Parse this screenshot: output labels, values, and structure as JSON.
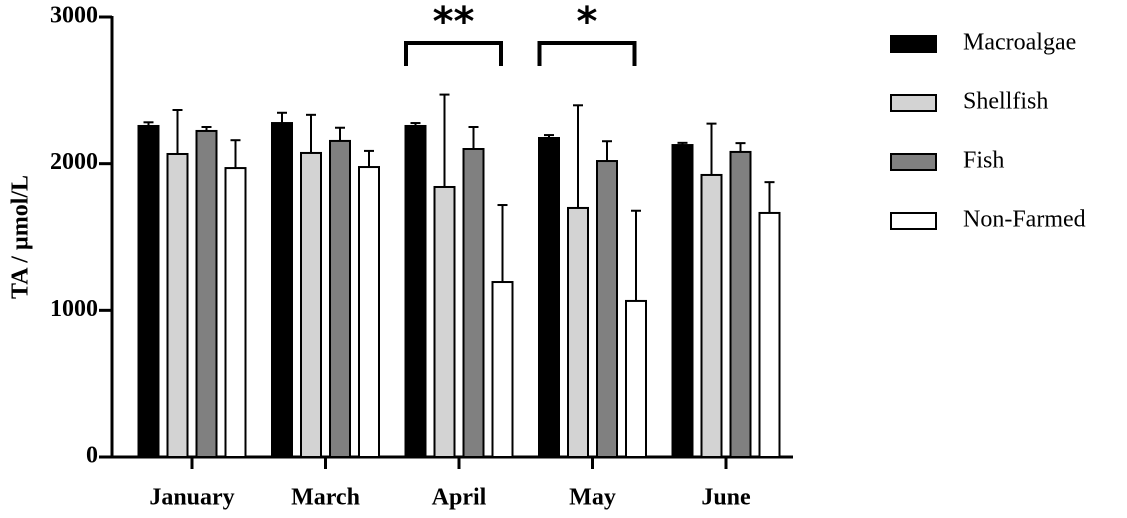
{
  "chart_data": {
    "type": "bar",
    "y_label": "TA / µmol/L",
    "categories": [
      "January",
      "March",
      "April",
      "May",
      "June"
    ],
    "series": [
      {
        "name": "Macroalgae",
        "color": "#000000",
        "values": [
          2257,
          2277,
          2257,
          2175,
          2127
        ],
        "errors": [
          25,
          70,
          20,
          20,
          15
        ]
      },
      {
        "name": "Shellfish",
        "color": "#d3d3d3",
        "values": [
          2066,
          2073,
          1841,
          1698,
          1923
        ],
        "errors": [
          300,
          260,
          630,
          700,
          350
        ]
      },
      {
        "name": "Fish",
        "color": "#808080",
        "values": [
          2223,
          2155,
          2100,
          2018,
          2080
        ],
        "errors": [
          27,
          90,
          150,
          135,
          60
        ]
      },
      {
        "name": "Non-Farmed",
        "color": "#ffffff",
        "values": [
          1970,
          1977,
          1193,
          1064,
          1664
        ],
        "errors": [
          190,
          110,
          525,
          615,
          210
        ]
      }
    ],
    "ylim": [
      0,
      3000
    ],
    "yticks": [
      0,
      1000,
      2000,
      3000
    ],
    "annotations": [
      {
        "text": "**",
        "category": "April"
      },
      {
        "text": "*",
        "category": "May"
      }
    ]
  }
}
